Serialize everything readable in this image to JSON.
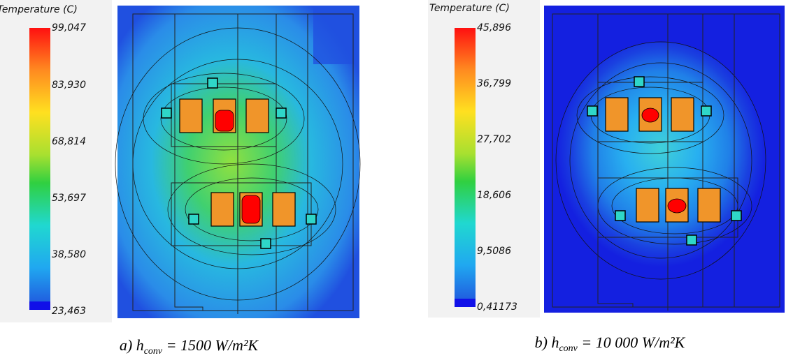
{
  "panels": [
    {
      "colorbar": {
        "title": "Temperature (C)",
        "ticks": [
          "99,047",
          "83,930",
          "68,814",
          "53,697",
          "38,580",
          "23,463"
        ]
      },
      "caption": {
        "prefix": "a) h",
        "subscript": "conv",
        "rest": " = 1500 W/m²K"
      }
    },
    {
      "colorbar": {
        "title": "Temperature (C)",
        "ticks": [
          "45,896",
          "36,799",
          "27,702",
          "18,606",
          "9,5086",
          "0,41173"
        ]
      },
      "caption": {
        "prefix": "b) h",
        "subscript": "conv",
        "rest": " = 10 000 W/m²K"
      }
    }
  ]
}
